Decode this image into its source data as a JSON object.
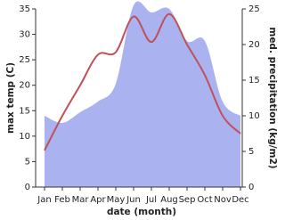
{
  "chart_data": {
    "type": "line",
    "x_label": "date (month)",
    "y_label": "max temp (C)",
    "y2_label": "med. precipitation (kg/m2)",
    "categories": [
      "Jan",
      "Feb",
      "Mar",
      "Apr",
      "May",
      "Jun",
      "Jul",
      "Aug",
      "Sep",
      "Oct",
      "Nov",
      "Dec"
    ],
    "series": [
      {
        "name": "med. precipitation",
        "type": "area",
        "axis": "y2",
        "color": "#aab3ef",
        "values": [
          10,
          9,
          10.5,
          12,
          14.5,
          25.5,
          24.5,
          25,
          20.5,
          20.5,
          12,
          10
        ]
      },
      {
        "name": "max temp",
        "type": "line",
        "color": "#c0505a",
        "values": [
          7.2,
          14,
          20,
          26,
          26.5,
          33.5,
          28.5,
          34,
          28,
          22,
          14,
          10.5
        ]
      }
    ],
    "ylim": [
      0,
      35
    ],
    "yticks": [
      0,
      5,
      10,
      15,
      20,
      25,
      30,
      35
    ],
    "y2lim": [
      0,
      25
    ],
    "y2ticks": [
      0,
      5,
      10,
      15,
      20,
      25
    ]
  }
}
